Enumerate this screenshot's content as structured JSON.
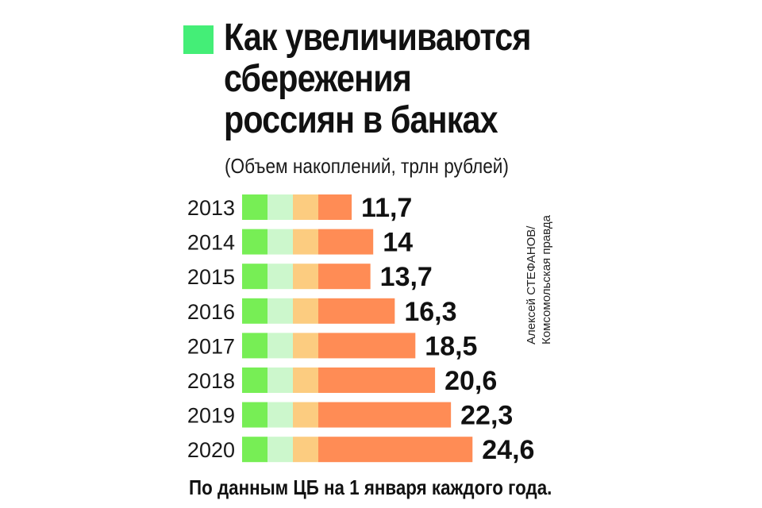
{
  "chart_data": {
    "type": "bar",
    "orientation": "horizontal",
    "title": "Как увеличиваются сбережения россиян в банках",
    "subtitle": "(Объем накоплений, трлн рублей)",
    "categories": [
      "2013",
      "2014",
      "2015",
      "2016",
      "2017",
      "2018",
      "2019",
      "2020"
    ],
    "values": [
      11.7,
      14,
      13.7,
      16.3,
      18.5,
      20.6,
      22.3,
      24.6
    ],
    "value_labels": [
      "11,7",
      "14",
      "13,7",
      "16,3",
      "18,5",
      "20,6",
      "22,3",
      "24,6"
    ],
    "xlabel": "",
    "ylabel": "",
    "xlim": [
      0,
      24.6
    ],
    "grid": false,
    "legend": "none",
    "footnote": "По данным ЦБ на 1 января каждого года.",
    "credit": [
      "Алексей СТЕФАНОВ/",
      "Комсомольская правда"
    ],
    "colors": {
      "title_marker": "#44ee77",
      "bar_segments": [
        "#77ee55",
        "#ccf7cc",
        "#fccc80",
        "#ff8c55"
      ],
      "text": "#111111"
    }
  }
}
